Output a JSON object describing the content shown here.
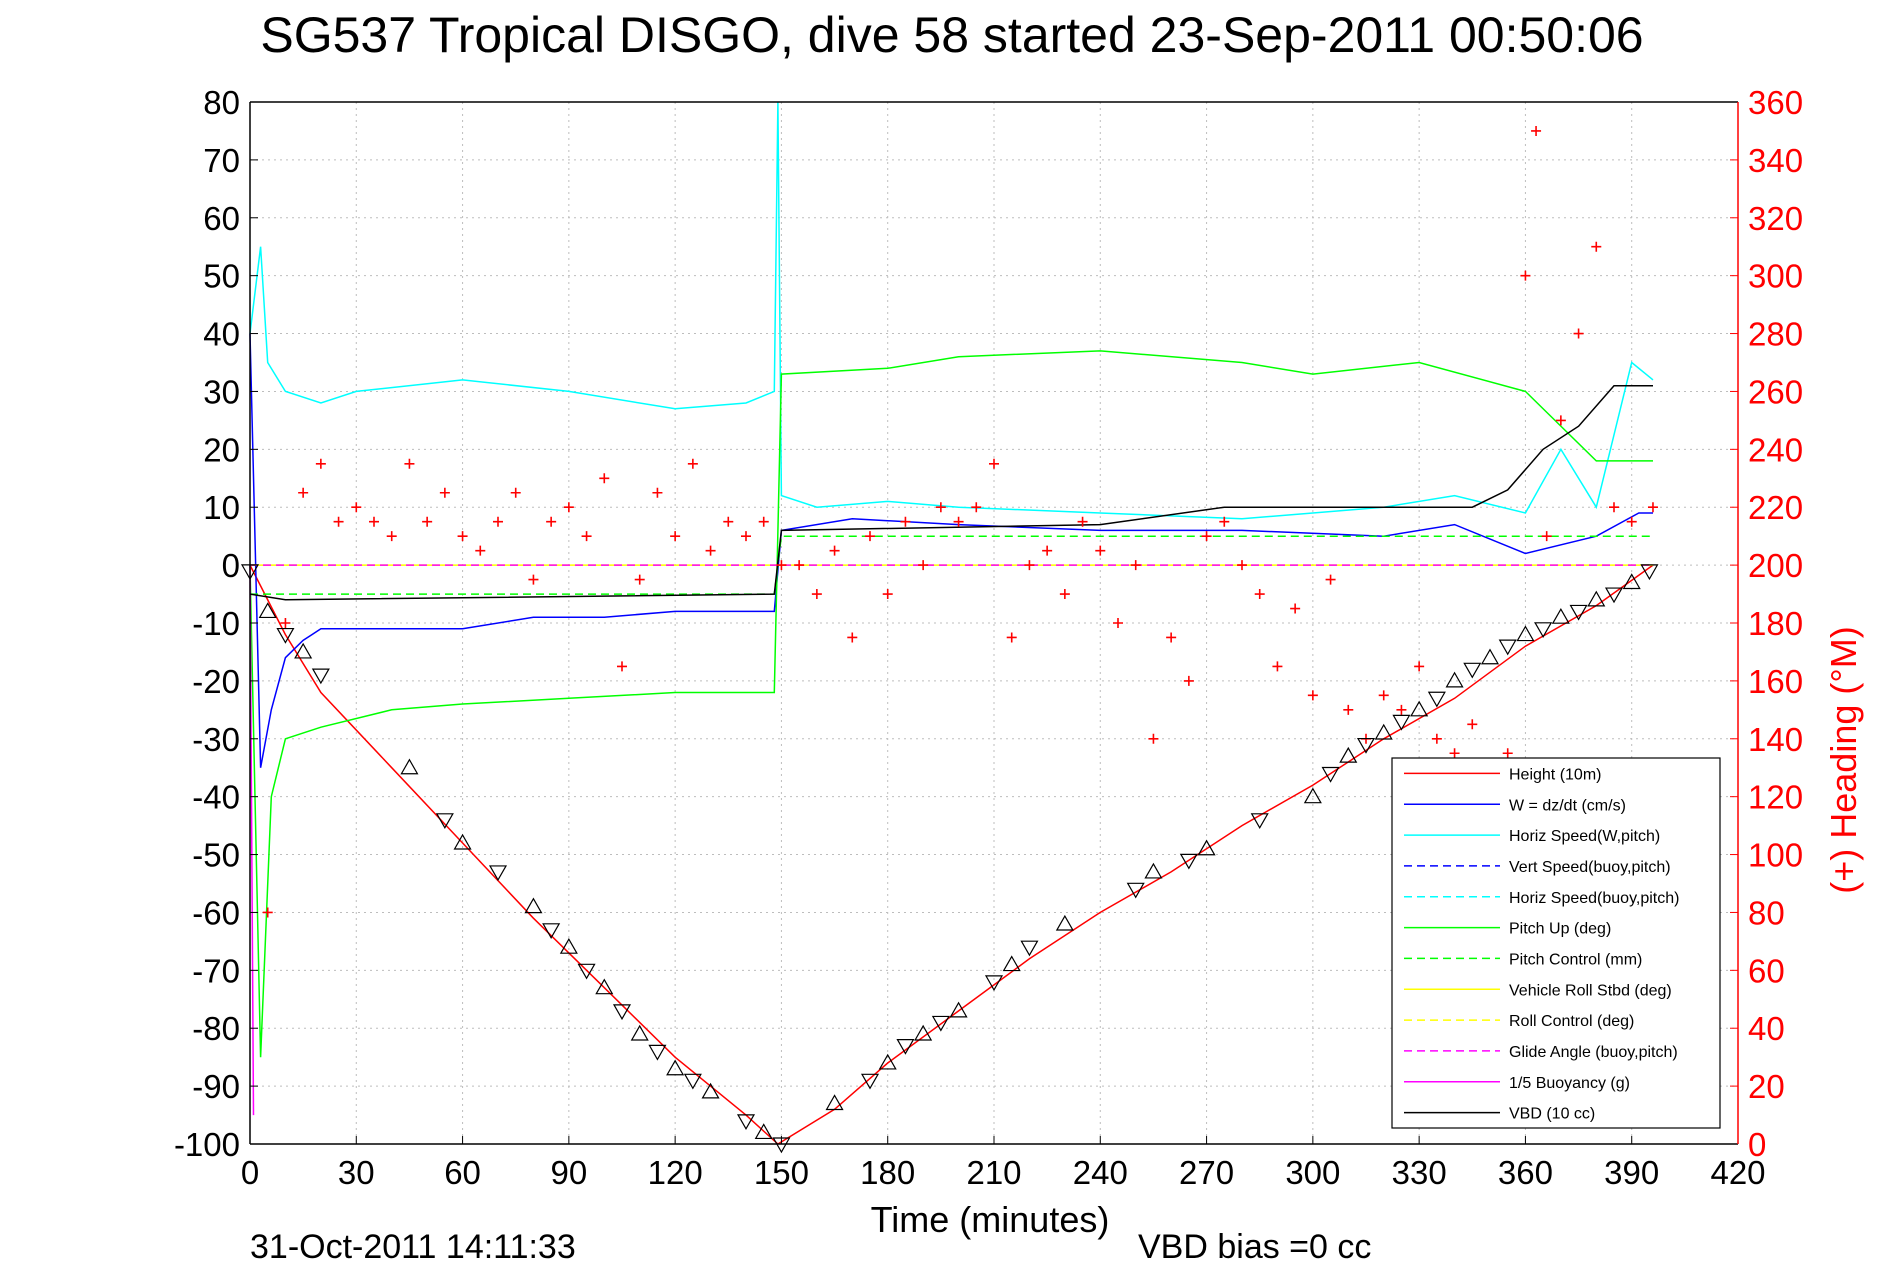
{
  "chart_data": {
    "type": "line",
    "title": "SG537 Tropical DISGO, dive 58 started 23-Sep-2011 00:50:06",
    "xlabel": "Time (minutes)",
    "ylabel_right": "(+) Heading (°M)",
    "footer_left": "31-Oct-2011 14:11:33",
    "footer_center": "VBD bias =0 cc",
    "xlim": [
      0,
      420
    ],
    "ylim": [
      -100,
      80
    ],
    "ylim_right": [
      0,
      360
    ],
    "xticks": [
      "0",
      "30",
      "60",
      "90",
      "120",
      "150",
      "180",
      "210",
      "240",
      "270",
      "300",
      "330",
      "360",
      "390",
      "420"
    ],
    "yticks": [
      "80",
      "70",
      "60",
      "50",
      "40",
      "30",
      "20",
      "10",
      "0",
      "-10",
      "-20",
      "-30",
      "-40",
      "-50",
      "-60",
      "-70",
      "-80",
      "-90",
      "-100"
    ],
    "yticks_right": [
      "360",
      "340",
      "320",
      "300",
      "280",
      "260",
      "240",
      "220",
      "200",
      "180",
      "160",
      "140",
      "120",
      "100",
      "80",
      "60",
      "40",
      "20",
      "0"
    ],
    "grid": true,
    "legend_position": "bottom-right",
    "series": [
      {
        "name": "Height (10m)",
        "color": "#ff0000",
        "style": "solid",
        "x": [
          0,
          10,
          20,
          40,
          60,
          80,
          100,
          120,
          140,
          149,
          165,
          180,
          200,
          220,
          240,
          260,
          280,
          300,
          320,
          340,
          360,
          380,
          396
        ],
        "y": [
          0,
          -12,
          -22,
          -35,
          -48,
          -61,
          -73,
          -85,
          -95,
          -100,
          -94,
          -86,
          -77,
          -68,
          -60,
          -53,
          -45,
          -38,
          -30,
          -23,
          -14,
          -7,
          0
        ]
      },
      {
        "name": "W = dz/dt (cm/s)",
        "color": "#0000ff",
        "style": "solid",
        "x": [
          0,
          3,
          6,
          10,
          15,
          20,
          40,
          60,
          80,
          100,
          120,
          140,
          148,
          150,
          170,
          200,
          240,
          280,
          320,
          340,
          360,
          380,
          392,
          396
        ],
        "y": [
          40,
          -35,
          -25,
          -16,
          -13,
          -11,
          -11,
          -11,
          -9,
          -9,
          -8,
          -8,
          -8,
          6,
          8,
          7,
          6,
          6,
          5,
          7,
          2,
          5,
          9,
          9
        ]
      },
      {
        "name": "Horiz Speed(W,pitch)",
        "color": "#00ffff",
        "style": "solid",
        "x": [
          0,
          3,
          5,
          10,
          20,
          30,
          60,
          90,
          120,
          140,
          148,
          149,
          150,
          160,
          180,
          200,
          240,
          280,
          320,
          340,
          360,
          370,
          380,
          390,
          396
        ],
        "y": [
          40,
          55,
          35,
          30,
          28,
          30,
          32,
          30,
          27,
          28,
          30,
          80,
          12,
          10,
          11,
          10,
          9,
          8,
          10,
          12,
          9,
          20,
          10,
          35,
          32
        ]
      },
      {
        "name": "Vert Speed(buoy,pitch)",
        "color": "#0000ff",
        "style": "dashed",
        "x": [],
        "y": []
      },
      {
        "name": "Horiz Speed(buoy,pitch)",
        "color": "#00ffff",
        "style": "dashed",
        "x": [],
        "y": []
      },
      {
        "name": "Pitch Up (deg)",
        "color": "#00ff00",
        "style": "solid",
        "x": [
          0,
          3,
          6,
          10,
          20,
          40,
          60,
          90,
          120,
          148,
          150,
          180,
          200,
          240,
          280,
          300,
          330,
          360,
          380,
          396
        ],
        "y": [
          0,
          -85,
          -40,
          -30,
          -28,
          -25,
          -24,
          -23,
          -22,
          -22,
          33,
          34,
          36,
          37,
          35,
          33,
          35,
          30,
          18,
          18
        ]
      },
      {
        "name": "Pitch Control (mm)",
        "color": "#00ff00",
        "style": "dashed",
        "x": [
          0,
          10,
          148,
          150,
          396
        ],
        "y": [
          -5,
          -5,
          -5,
          5,
          5
        ]
      },
      {
        "name": "Vehicle Roll Stbd (deg)",
        "color": "#ffff00",
        "style": "solid",
        "x": [
          0,
          20,
          60,
          100,
          148,
          150,
          200,
          250,
          300,
          350,
          396
        ],
        "y": [
          0,
          0,
          0,
          0,
          0,
          0,
          0,
          0,
          0,
          0,
          0
        ]
      },
      {
        "name": "Roll Control (deg)",
        "color": "#ffff00",
        "style": "dashed",
        "x": [
          0,
          396
        ],
        "y": [
          0,
          0
        ]
      },
      {
        "name": "Glide Angle (buoy,pitch)",
        "color": "#ff00ff",
        "style": "dashed",
        "x": [
          0,
          396
        ],
        "y": [
          0,
          0
        ]
      },
      {
        "name": "1/5 Buoyancy (g)",
        "color": "#ff00ff",
        "style": "solid",
        "x": [
          0,
          1
        ],
        "y": [
          0,
          -95
        ]
      },
      {
        "name": "VBD (10 cc)",
        "color": "#000000",
        "style": "solid",
        "x": [
          0,
          10,
          148,
          150,
          240,
          275,
          345,
          355,
          365,
          375,
          385,
          396
        ],
        "y": [
          -5,
          -6,
          -5,
          6,
          7,
          10,
          10,
          13,
          20,
          24,
          31,
          31
        ]
      }
    ],
    "heading_right_axis": {
      "color": "#ff0000",
      "marker": "+",
      "x": [
        5,
        10,
        15,
        20,
        25,
        30,
        35,
        40,
        45,
        50,
        55,
        60,
        65,
        70,
        75,
        80,
        85,
        90,
        95,
        100,
        105,
        110,
        115,
        120,
        125,
        130,
        135,
        140,
        145,
        150,
        155,
        160,
        165,
        170,
        175,
        180,
        185,
        190,
        195,
        200,
        205,
        210,
        215,
        220,
        225,
        230,
        235,
        240,
        245,
        250,
        255,
        260,
        265,
        270,
        275,
        280,
        285,
        290,
        295,
        300,
        305,
        310,
        315,
        320,
        325,
        330,
        335,
        340,
        345,
        350,
        355,
        360,
        363,
        366,
        370,
        375,
        380,
        385,
        390,
        396
      ],
      "y": [
        80,
        180,
        225,
        235,
        215,
        220,
        215,
        210,
        235,
        215,
        225,
        210,
        205,
        215,
        225,
        195,
        215,
        220,
        210,
        230,
        165,
        195,
        225,
        210,
        235,
        205,
        215,
        210,
        215,
        200,
        200,
        190,
        205,
        175,
        210,
        190,
        215,
        200,
        220,
        215,
        220,
        235,
        175,
        200,
        205,
        190,
        215,
        205,
        180,
        200,
        140,
        175,
        160,
        210,
        215,
        200,
        190,
        165,
        185,
        155,
        195,
        150,
        140,
        155,
        150,
        165,
        140,
        135,
        145,
        130,
        135,
        300,
        350,
        210,
        250,
        280,
        310,
        220,
        215,
        220
      ]
    },
    "markers_triangles": {
      "x": [
        0,
        5,
        10,
        15,
        20,
        45,
        55,
        60,
        70,
        80,
        85,
        90,
        95,
        100,
        105,
        110,
        115,
        120,
        125,
        130,
        140,
        145,
        150,
        165,
        175,
        180,
        185,
        190,
        195,
        200,
        210,
        215,
        220,
        230,
        250,
        255,
        265,
        270,
        285,
        300,
        305,
        310,
        315,
        320,
        325,
        330,
        335,
        340,
        345,
        350,
        355,
        360,
        365,
        370,
        375,
        380,
        385,
        390,
        395
      ],
      "y": [
        -1,
        -8,
        -12,
        -15,
        -19,
        -35,
        -44,
        -48,
        -53,
        -59,
        -63,
        -66,
        -70,
        -73,
        -77,
        -81,
        -84,
        -87,
        -89,
        -91,
        -96,
        -98,
        -100,
        -93,
        -89,
        -86,
        -83,
        -81,
        -79,
        -77,
        -72,
        -69,
        -66,
        -62,
        -56,
        -53,
        -51,
        -49,
        -44,
        -40,
        -36,
        -33,
        -31,
        -29,
        -27,
        -25,
        -23,
        -20,
        -18,
        -16,
        -14,
        -12,
        -11,
        -9,
        -8,
        -6,
        -5,
        -3,
        -1
      ]
    }
  }
}
